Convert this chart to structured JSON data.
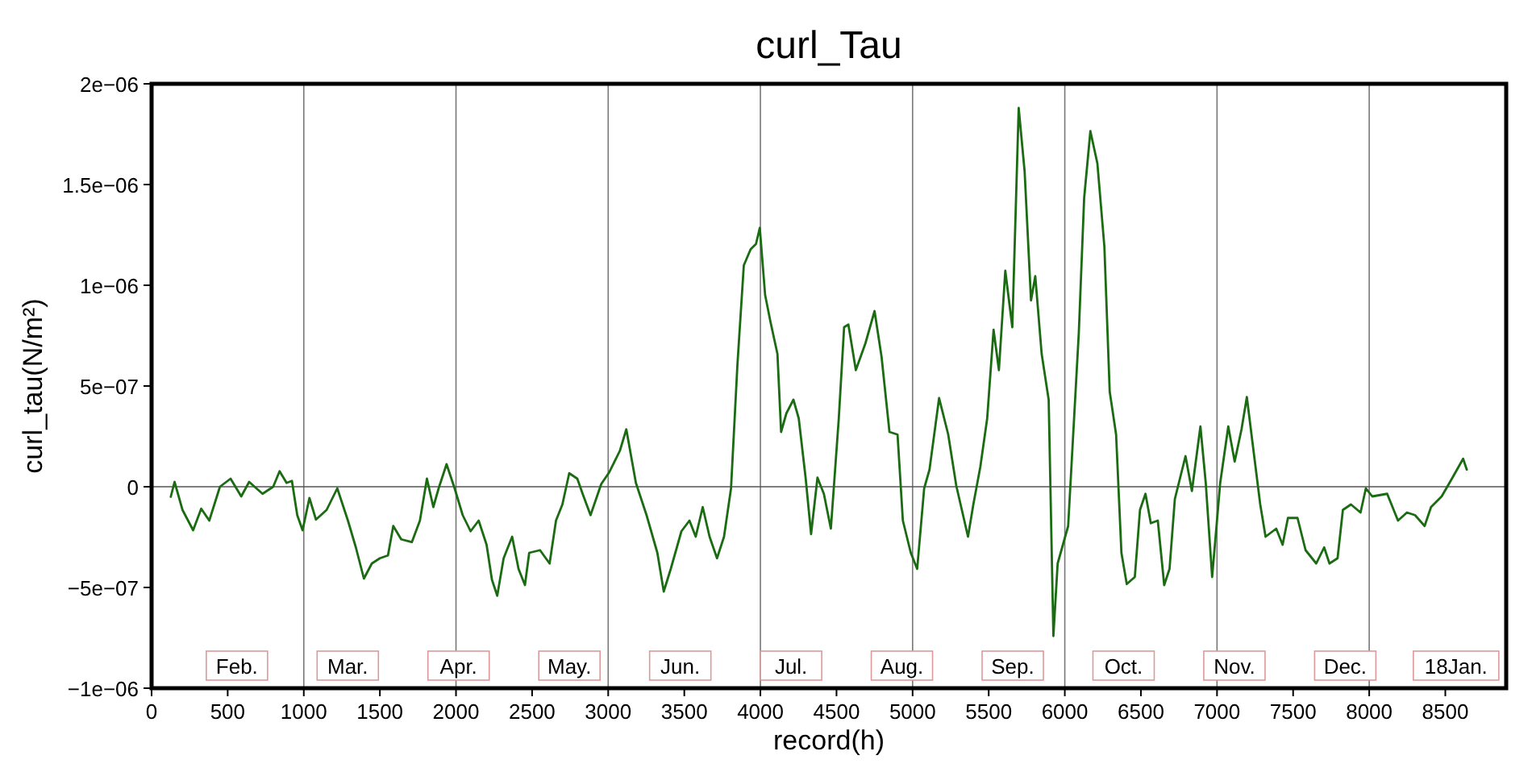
{
  "chart_data": {
    "type": "line",
    "title": "curl_Tau",
    "xlabel": "record(h)",
    "ylabel": "curl_tau(N/m²)",
    "xlim": [
      0,
      8900
    ],
    "xticks": [
      0,
      500,
      1000,
      1500,
      2000,
      2500,
      3000,
      3500,
      4000,
      4500,
      5000,
      5500,
      6000,
      6500,
      7000,
      7500,
      8000,
      8500
    ],
    "ylim": [
      -1e-06,
      2e-06
    ],
    "yticks": [
      {
        "value": -1e-06,
        "label": "−1e−06"
      },
      {
        "value": -5e-07,
        "label": "−5e−07"
      },
      0,
      {
        "value": 5e-07,
        "label": "5e−07"
      },
      {
        "value": 1e-06,
        "label": "1e−06"
      },
      {
        "value": 1.5e-06,
        "label": "1.5e−06"
      },
      {
        "value": 2e-06,
        "label": "2e−06"
      }
    ],
    "grid": false,
    "marker": "none",
    "line_style": "solid",
    "ref_lines": [
      {
        "axis": "x",
        "value": 1000,
        "color": "#777777"
      },
      {
        "axis": "x",
        "value": 2000,
        "color": "#777777"
      },
      {
        "axis": "x",
        "value": 3000,
        "color": "#777777"
      },
      {
        "axis": "x",
        "value": 4000,
        "color": "#777777"
      },
      {
        "axis": "x",
        "value": 5000,
        "color": "#777777"
      },
      {
        "axis": "x",
        "value": 6000,
        "color": "#777777"
      },
      {
        "axis": "x",
        "value": 7000,
        "color": "#777777"
      },
      {
        "axis": "x",
        "value": 8000,
        "color": "#777777"
      },
      {
        "axis": "y",
        "value": 0,
        "color": "#555555"
      }
    ],
    "annotations": [
      "Feb.",
      "Mar.",
      "Apr.",
      "May.",
      "Jun.",
      "Jul.",
      "Aug.",
      "Sep.",
      "Oct.",
      "Nov.",
      "Dec.",
      "18Jan."
    ],
    "series": [
      {
        "color": "#1a6b12",
        "x": [
          126,
          151,
          203,
          273,
          326,
          379,
          449,
          519,
          589,
          641,
          729,
          799,
          841,
          887,
          922,
          957,
          992,
          1037,
          1080,
          1150,
          1220,
          1290,
          1342,
          1395,
          1447,
          1500,
          1553,
          1588,
          1640,
          1710,
          1763,
          1809,
          1851,
          1886,
          1938,
          1991,
          2044,
          2096,
          2149,
          2201,
          2236,
          2271,
          2313,
          2369,
          2411,
          2453,
          2481,
          2552,
          2615,
          2657,
          2699,
          2744,
          2797,
          2832,
          2884,
          2954,
          3007,
          3077,
          3119,
          3182,
          3252,
          3323,
          3365,
          3411,
          3481,
          3534,
          3575,
          3621,
          3666,
          3715,
          3761,
          3807,
          3849,
          3891,
          3936,
          3971,
          3996,
          4031,
          4066,
          4112,
          4136,
          4171,
          4217,
          4252,
          4297,
          4333,
          4375,
          4417,
          4463,
          4515,
          4550,
          4578,
          4627,
          4690,
          4750,
          4796,
          4848,
          4901,
          4936,
          4988,
          5030,
          5076,
          5111,
          5174,
          5234,
          5287,
          5364,
          5399,
          5445,
          5490,
          5532,
          5567,
          5609,
          5655,
          5697,
          5736,
          5778,
          5806,
          5848,
          5894,
          5925,
          5953,
          6022,
          6092,
          6127,
          6168,
          6214,
          6260,
          6295,
          6337,
          6372,
          6407,
          6460,
          6494,
          6530,
          6565,
          6611,
          6653,
          6688,
          6723,
          6793,
          6835,
          6891,
          6926,
          6968,
          7021,
          7074,
          7116,
          7161,
          7196,
          7231,
          7284,
          7319,
          7389,
          7431,
          7466,
          7529,
          7582,
          7652,
          7704,
          7739,
          7792,
          7827,
          7880,
          7943,
          7978,
          8020,
          8118,
          8189,
          8248,
          8301,
          8364,
          8406,
          8476,
          8547,
          8617,
          8641
        ],
        "values": [
          -5e-08,
          2.4e-08,
          -1.15e-07,
          -2.16e-07,
          -1.09e-07,
          -1.68e-07,
          0,
          4e-08,
          -4.8e-08,
          2.4e-08,
          -3.5e-08,
          0,
          7.7e-08,
          1.9e-08,
          2.9e-08,
          -1.41e-07,
          -2.16e-07,
          -5.6e-08,
          -1.63e-07,
          -1.15e-07,
          -8e-09,
          -1.68e-07,
          -3.01e-07,
          -4.56e-07,
          -3.81e-07,
          -3.55e-07,
          -3.41e-07,
          -1.95e-07,
          -2.61e-07,
          -2.75e-07,
          -1.68e-07,
          4e-08,
          -1.01e-07,
          -8e-09,
          1.12e-07,
          -8e-09,
          -1.41e-07,
          -2.21e-07,
          -1.68e-07,
          -2.88e-07,
          -4.61e-07,
          -5.41e-07,
          -3.55e-07,
          -2.48e-07,
          -4.08e-07,
          -4.88e-07,
          -3.28e-07,
          -3.15e-07,
          -3.81e-07,
          -1.68e-07,
          -8.8e-08,
          6.7e-08,
          4e-08,
          -3.5e-08,
          -1.41e-07,
          1.3e-08,
          7.2e-08,
          1.79e-07,
          2.85e-07,
          1.9e-08,
          -1.41e-07,
          -3.28e-07,
          -5.2e-07,
          -4.08e-07,
          -2.21e-07,
          -1.68e-07,
          -2.48e-07,
          -1.01e-07,
          -2.48e-07,
          -3.55e-07,
          -2.48e-07,
          -8e-09,
          6.05e-07,
          1.099e-06,
          1.179e-06,
          1.205e-06,
          1.285e-06,
          9.52e-07,
          8.19e-07,
          6.59e-07,
          2.72e-07,
          3.65e-07,
          4.32e-07,
          3.39e-07,
          4.5e-08,
          -2.35e-07,
          4.5e-08,
          -3.5e-08,
          -2.08e-07,
          3.39e-07,
          7.92e-07,
          8.05e-07,
          5.79e-07,
          7.12e-07,
          8.72e-07,
          6.45e-07,
          2.72e-07,
          2.59e-07,
          -1.68e-07,
          -3.28e-07,
          -4.08e-07,
          -8e-09,
          8.5e-08,
          4.4e-07,
          2.59e-07,
          5e-09,
          -2.48e-07,
          -8.8e-08,
          9.9e-08,
          3.39e-07,
          7.79e-07,
          5.79e-07,
          1.072e-06,
          7.92e-07,
          1.88e-06,
          1.565e-06,
          9.25e-07,
          1.045e-06,
          6.59e-07,
          4.32e-07,
          -7.41e-07,
          -3.81e-07,
          -1.95e-07,
          7.65e-07,
          1.432e-06,
          1.765e-06,
          1.605e-06,
          1.192e-06,
          4.72e-07,
          2.59e-07,
          -3.28e-07,
          -4.83e-07,
          -4.48e-07,
          -1.15e-07,
          -3.5e-08,
          -1.81e-07,
          -1.68e-07,
          -4.88e-07,
          -4.08e-07,
          -6.1e-08,
          1.52e-07,
          -2.1e-08,
          2.99e-07,
          1.9e-08,
          -4.48e-07,
          1.9e-08,
          2.99e-07,
          1.25e-07,
          2.85e-07,
          4.45e-07,
          2.32e-07,
          -8.8e-08,
          -2.48e-07,
          -2.08e-07,
          -2.88e-07,
          -1.55e-07,
          -1.55e-07,
          -3.15e-07,
          -3.81e-07,
          -3.01e-07,
          -3.81e-07,
          -3.55e-07,
          -1.15e-07,
          -8.8e-08,
          -1.28e-07,
          -8e-09,
          -4.8e-08,
          -3.5e-08,
          -1.68e-07,
          -1.28e-07,
          -1.41e-07,
          -1.95e-07,
          -1.01e-07,
          -4.8e-08,
          4.5e-08,
          1.39e-07,
          8.5e-08
        ]
      }
    ]
  }
}
